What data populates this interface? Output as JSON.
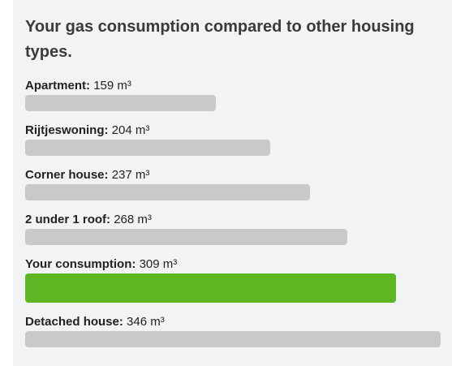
{
  "title": "Your gas consumption compared to other housing types.",
  "unit": "m³",
  "max_value": 346,
  "colors": {
    "bar": "#c9c9c9",
    "highlight": "#5db723",
    "panel": "#f2f3f5"
  },
  "rows": [
    {
      "label": "Apartment:",
      "value": 159,
      "value_text": "159 m³",
      "highlight": false
    },
    {
      "label": "Rijtjeswoning:",
      "value": 204,
      "value_text": "204 m³",
      "highlight": false
    },
    {
      "label": "Corner house:",
      "value": 237,
      "value_text": "237 m³",
      "highlight": false
    },
    {
      "label": "2 under 1 roof:",
      "value": 268,
      "value_text": "268 m³",
      "highlight": false
    },
    {
      "label": "Your consumption:",
      "value": 309,
      "value_text": "309 m³",
      "highlight": true
    },
    {
      "label": "Detached house:",
      "value": 346,
      "value_text": "346 m³",
      "highlight": false
    }
  ]
}
